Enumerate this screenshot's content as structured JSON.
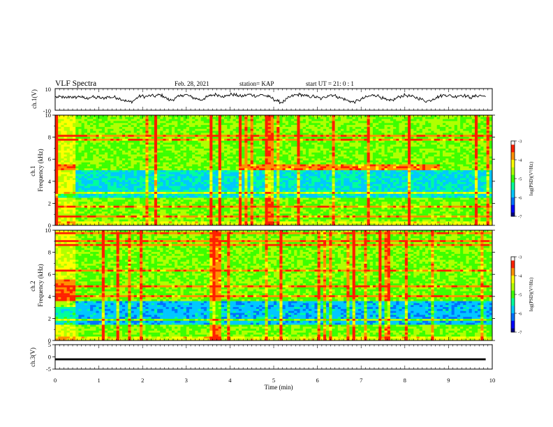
{
  "header": {
    "title": "VLF Spectra",
    "date": "Feb. 28, 2021",
    "station": "station= KAP",
    "start": "start  UT =   21: 0  : 1"
  },
  "chart_data": [
    {
      "type": "line",
      "panel": "ch1-waveform",
      "ylabel": "ch.1(V)",
      "ylim": [
        -10,
        10
      ],
      "ytick_labels": [
        "10",
        "-10"
      ],
      "xlim": [
        0,
        10
      ],
      "series": [
        {
          "values": [
            2.4,
            1.8,
            2.6,
            1.2,
            1.9,
            2.8,
            1.5,
            2.2,
            2.9,
            1.6,
            0.6,
            1.8,
            2.4,
            1.3,
            2.1,
            0.9,
            1.5,
            2.5,
            1.8,
            2.2,
            1.4,
            0.8,
            -0.4,
            -1.6,
            -2.2,
            -1.8,
            0.4,
            2.6,
            3.2,
            2.4,
            3.1,
            3.6,
            2.8,
            3.8,
            4.2,
            2.9,
            0.8,
            -0.8,
            -0.2,
            1.4,
            2.6,
            3.9,
            4.4,
            3.6,
            2.1,
            1.2,
            0.6,
            -0.6,
            0.8,
            2.2,
            3.4,
            4.1,
            4.6,
            3.8,
            3.2,
            2.8,
            4.0,
            4.8,
            4.2,
            3.6,
            2.8,
            3.4,
            4.2,
            4.6,
            3.8,
            3.1,
            3.9,
            4.4,
            3.2,
            2.4,
            1.2,
            -0.6,
            -1.8,
            -2.8,
            -1.6,
            0.8,
            2.4,
            3.6,
            4.2,
            4.6,
            3.9,
            3.2,
            2.4,
            3.1,
            2.2,
            1.6,
            0.4,
            2.1,
            3.6,
            4.4,
            3.8,
            2.6,
            1.4,
            0.8,
            -0.6,
            -1.4,
            -2.4,
            -2.0,
            -1.0,
            0.4,
            1.6,
            2.6,
            3.4,
            4.2,
            3.6,
            2.2,
            0.8,
            -0.8,
            -1.4,
            -0.6,
            0.8,
            2.4,
            3.2,
            4.0,
            3.4,
            2.6,
            2.0,
            1.4,
            0.4,
            -0.8,
            -1.6,
            -1.0,
            0.6,
            1.8,
            2.8,
            3.6,
            4.2,
            3.8,
            3.0,
            2.4,
            3.4,
            4.0,
            3.6,
            2.8,
            1.8,
            2.4,
            3.2,
            3.8,
            3.2,
            2.6
          ]
        }
      ]
    },
    {
      "type": "heatmap",
      "panel": "ch1-spectrogram",
      "ylabel": "ch.1\nFrequency (kHz)",
      "ylim": [
        0,
        10
      ],
      "ytick_labels": [
        "0",
        "2",
        "4",
        "6",
        "8",
        "10"
      ],
      "xlim": [
        0,
        10
      ],
      "colorbar": {
        "label": "log(PSD)(V²/Hz)",
        "range": [
          -7,
          -3
        ],
        "tick_labels": [
          "-3",
          "-4",
          "-5",
          "-6",
          "-7"
        ]
      },
      "quiet_band_khz": [
        2.5,
        5.0
      ],
      "emission_line_khz": [
        5.0,
        5.6
      ],
      "emission_line_time_min": [
        4.2,
        8.8
      ],
      "impulsive_noise_before_min": 0.45
    },
    {
      "type": "heatmap",
      "panel": "ch2-spectrogram",
      "ylabel": "ch.2\nFrequency (kHz)",
      "ylim": [
        0,
        10
      ],
      "ytick_labels": [
        "0",
        "2",
        "4",
        "6",
        "8",
        "10"
      ],
      "xlim": [
        0,
        10
      ],
      "colorbar": {
        "label": "log(PSD)(V²/Hz)",
        "range": [
          -7,
          -3
        ],
        "tick_labels": [
          "-3",
          "-4",
          "-5",
          "-6",
          "-7"
        ]
      },
      "quiet_band_khz": [
        1.5,
        3.5
      ],
      "impulsive_noise_before_min": 0.45
    },
    {
      "type": "line",
      "panel": "ch3-waveform",
      "ylabel": "ch.3(V)",
      "ylim": [
        -5,
        5
      ],
      "ytick_labels": [
        "5",
        "0",
        "-5"
      ],
      "xlim": [
        0,
        10
      ],
      "xlabel": "Time (min)",
      "xtick_labels": [
        "0",
        "1",
        "2",
        "3",
        "4",
        "5",
        "6",
        "7",
        "8",
        "9",
        "10"
      ],
      "series": [
        {
          "values": [
            -1.0,
            -1.0,
            -1.0,
            -1.0,
            -1.0,
            -1.0,
            -1.0,
            -1.0,
            -1.0,
            -1.0,
            -1.0
          ],
          "band_halfwidth": 0.4
        }
      ]
    }
  ],
  "colors": {
    "axes": "#000000",
    "waveform": "#000000",
    "colormap": [
      "#000080",
      "#0000ff",
      "#0070ff",
      "#00c8ff",
      "#00ff9a",
      "#3cff00",
      "#b0ff00",
      "#ffff00",
      "#ff9000",
      "#ff2000",
      "#ffffff"
    ]
  }
}
